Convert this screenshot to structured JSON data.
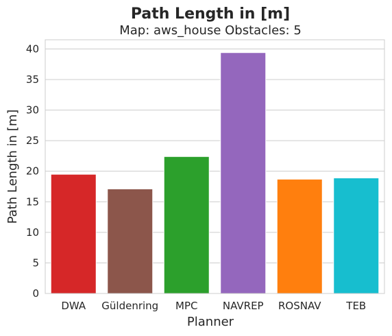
{
  "chart_data": {
    "type": "bar",
    "title": "Path Length in [m]",
    "subtitle": "Map: aws_house Obstacles: 5",
    "xlabel": "Planner",
    "ylabel": "Path Length in [m]",
    "categories": [
      "DWA",
      "Güldenring",
      "MPC",
      "NAVREP",
      "ROSNAV",
      "TEB"
    ],
    "values": [
      19.5,
      17.1,
      22.4,
      39.4,
      18.7,
      18.9
    ],
    "colors": [
      "#d62728",
      "#8c564b",
      "#2ca02c",
      "#9467bd",
      "#ff7f0e",
      "#17becf"
    ],
    "ylim": [
      0,
      41.5
    ],
    "yticks": [
      0,
      5,
      10,
      15,
      20,
      25,
      30,
      35,
      40
    ],
    "grid": "horizontal"
  }
}
